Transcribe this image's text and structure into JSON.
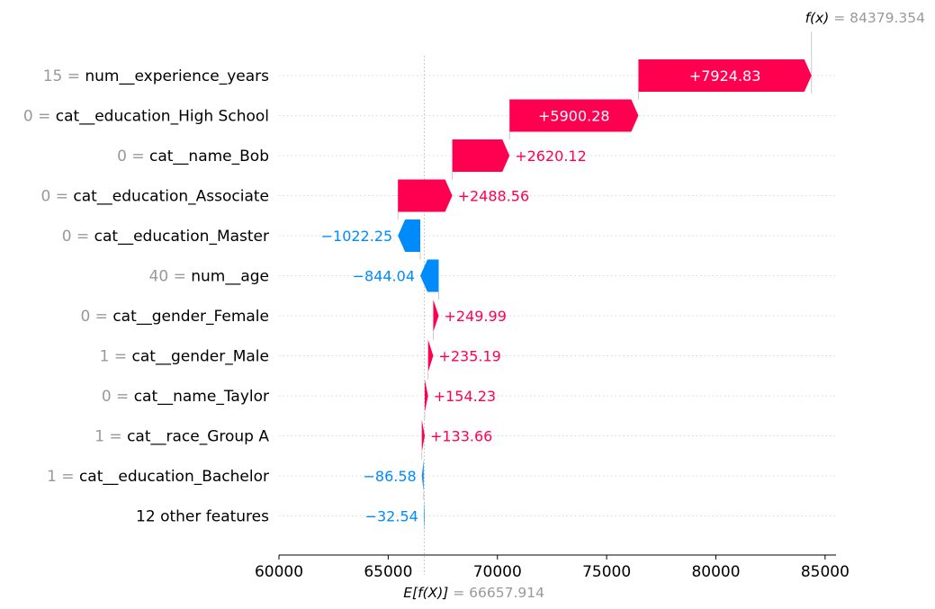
{
  "chart_data": {
    "type": "waterfall",
    "base_value": 66657.914,
    "final_value": 84379.354,
    "base_label": "E[f(X)]",
    "base_value_text": "66657.914",
    "final_label": "f(x)",
    "final_value_text": "84379.354",
    "xlim": [
      60000,
      85500
    ],
    "xticks": [
      60000,
      65000,
      70000,
      75000,
      80000,
      85000
    ],
    "xtick_labels": [
      "60000",
      "65000",
      "70000",
      "75000",
      "80000",
      "85000"
    ],
    "features": [
      {
        "value": "15",
        "name": "num__experience_years",
        "contribution": 7924.83,
        "label": "+7924.83"
      },
      {
        "value": "0",
        "name": "cat__education_High School",
        "contribution": 5900.28,
        "label": "+5900.28"
      },
      {
        "value": "0",
        "name": "cat__name_Bob",
        "contribution": 2620.12,
        "label": "+2620.12"
      },
      {
        "value": "0",
        "name": "cat__education_Associate",
        "contribution": 2488.56,
        "label": "+2488.56"
      },
      {
        "value": "0",
        "name": "cat__education_Master",
        "contribution": -1022.25,
        "label": "−1022.25"
      },
      {
        "value": "40",
        "name": "num__age",
        "contribution": -844.04,
        "label": "−844.04"
      },
      {
        "value": "0",
        "name": "cat__gender_Female",
        "contribution": 249.99,
        "label": "+249.99"
      },
      {
        "value": "1",
        "name": "cat__gender_Male",
        "contribution": 235.19,
        "label": "+235.19"
      },
      {
        "value": "0",
        "name": "cat__name_Taylor",
        "contribution": 154.23,
        "label": "+154.23"
      },
      {
        "value": "1",
        "name": "cat__race_Group A",
        "contribution": 133.66,
        "label": "+133.66"
      },
      {
        "value": "1",
        "name": "cat__education_Bachelor",
        "contribution": -86.58,
        "label": "−86.58"
      },
      {
        "value": "",
        "name": "12 other features",
        "contribution": -32.54,
        "label": "−32.54"
      }
    ],
    "colors": {
      "positive": "#ff0051",
      "negative": "#008bfb"
    },
    "grid": "dotted horizontal"
  }
}
